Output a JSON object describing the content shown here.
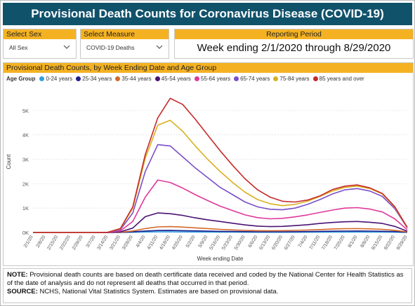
{
  "title": "Provisional Death Counts for Coronavirus Disease (COVID-19)",
  "filters": {
    "sex": {
      "label": "Select Sex",
      "value": "All Sex"
    },
    "measure": {
      "label": "Select Measure",
      "value": "COVID-19 Deaths"
    }
  },
  "period": {
    "label": "Reporting Period",
    "value": "Week ending 2/1/2020 through 8/29/2020"
  },
  "chart_header": "Provisional Death Counts, by Week Ending Date and Age Group",
  "colors": {
    "header_bg": "#11526b",
    "accent": "#f4b223"
  },
  "chart_data": {
    "type": "line",
    "title": "",
    "xlabel": "Week ending Date",
    "ylabel": "Count",
    "ylim": [
      0,
      5800
    ],
    "yticks": [
      0,
      1000,
      2000,
      3000,
      4000,
      5000
    ],
    "ytick_labels": [
      "0K",
      "1K",
      "2K",
      "3K",
      "4K",
      "5K"
    ],
    "legend_title": "Age Group",
    "legend_position": "top",
    "categories": [
      "2/1/20",
      "2/8/20",
      "2/15/20",
      "2/22/20",
      "2/29/20",
      "3/7/20",
      "3/14/20",
      "3/21/20",
      "3/28/20",
      "4/4/20",
      "4/11/20",
      "4/18/20",
      "4/25/20",
      "5/2/20",
      "5/9/20",
      "5/16/20",
      "5/23/20",
      "5/30/20",
      "6/6/20",
      "6/13/20",
      "6/20/20",
      "6/27/20",
      "7/4/20",
      "7/11/20",
      "7/18/20",
      "7/25/20",
      "8/1/20",
      "8/8/20",
      "8/15/20",
      "8/22/20",
      "8/29/20"
    ],
    "xtick_labels": [
      "2/1/20",
      "2/8/20",
      "2/15/20",
      "2/22/20",
      "2/29/20",
      "3/7/20",
      "3/14/20",
      "3/21/20",
      "3/28/20",
      "4/4/20",
      "4/11/20",
      "4/18/20",
      "4/25/20",
      "5/2/20",
      "5/9/20",
      "5/16/20",
      "5/23/20",
      "5/30/20",
      "6/6/20",
      "6/13/20",
      "6/20/20",
      "6/27/20",
      "7/4/20",
      "7/11/20",
      "7/18/20",
      "7/25/20",
      "8/1/20",
      "8/8/20",
      "8/15/20",
      "8/22/20",
      "8/29/20"
    ],
    "series": [
      {
        "name": "0-24 years",
        "color": "#2f9fe0",
        "values": [
          0,
          0,
          0,
          0,
          0,
          0,
          0,
          2,
          8,
          20,
          25,
          25,
          22,
          20,
          17,
          15,
          13,
          11,
          10,
          10,
          10,
          11,
          12,
          14,
          16,
          18,
          19,
          18,
          16,
          12,
          3
        ]
      },
      {
        "name": "25-34 years",
        "color": "#1f1f8a",
        "values": [
          0,
          0,
          0,
          0,
          0,
          0,
          1,
          5,
          25,
          60,
          80,
          82,
          75,
          65,
          55,
          47,
          40,
          34,
          30,
          29,
          30,
          33,
          38,
          45,
          52,
          58,
          60,
          57,
          50,
          38,
          8
        ]
      },
      {
        "name": "35-44 years",
        "color": "#d4692a",
        "values": [
          0,
          0,
          0,
          0,
          0,
          0,
          2,
          10,
          60,
          160,
          230,
          240,
          220,
          190,
          160,
          130,
          105,
          85,
          75,
          70,
          75,
          85,
          100,
          120,
          140,
          155,
          160,
          150,
          130,
          90,
          20
        ]
      },
      {
        "name": "45-54 years",
        "color": "#4a1273",
        "values": [
          0,
          0,
          0,
          0,
          0,
          0,
          3,
          25,
          180,
          650,
          800,
          770,
          700,
          600,
          520,
          450,
          380,
          310,
          260,
          240,
          250,
          280,
          320,
          370,
          410,
          440,
          450,
          420,
          370,
          250,
          50
        ]
      },
      {
        "name": "55-64 years",
        "color": "#e0389b",
        "values": [
          0,
          0,
          0,
          0,
          0,
          0,
          5,
          60,
          450,
          1450,
          2150,
          2050,
          1820,
          1550,
          1310,
          1080,
          900,
          720,
          610,
          560,
          580,
          640,
          720,
          820,
          920,
          1000,
          1020,
          960,
          840,
          560,
          110
        ]
      },
      {
        "name": "65-74 years",
        "color": "#7a4fc9",
        "values": [
          0,
          0,
          0,
          0,
          0,
          0,
          8,
          110,
          800,
          2500,
          3600,
          3550,
          3100,
          2650,
          2250,
          1850,
          1550,
          1250,
          1050,
          950,
          930,
          1000,
          1150,
          1350,
          1580,
          1750,
          1800,
          1700,
          1480,
          980,
          190
        ]
      },
      {
        "name": "75-84 years",
        "color": "#d9b11f",
        "values": [
          0,
          0,
          0,
          0,
          0,
          0,
          10,
          150,
          1000,
          3050,
          4400,
          4600,
          4150,
          3550,
          3000,
          2500,
          2050,
          1650,
          1350,
          1180,
          1100,
          1150,
          1280,
          1480,
          1700,
          1850,
          1900,
          1800,
          1580,
          1040,
          200
        ]
      },
      {
        "name": "85 years and over",
        "color": "#c62a2a",
        "values": [
          0,
          0,
          0,
          0,
          0,
          0,
          10,
          160,
          1050,
          3200,
          4700,
          5500,
          5250,
          4650,
          4000,
          3350,
          2750,
          2200,
          1750,
          1450,
          1280,
          1250,
          1330,
          1500,
          1760,
          1900,
          1950,
          1830,
          1600,
          1060,
          210
        ]
      }
    ]
  },
  "notes": {
    "note_label": "NOTE:",
    "note_text": " Provisional death counts are based on death certificate data received and coded by the National Center for Health Statistics as of the date of analysis and do not represent all deaths that occurred in that period.",
    "source_label": "SOURCE:",
    "source_text": " NCHS, National Vital Statistics System. Estimates are based on provisional data."
  }
}
